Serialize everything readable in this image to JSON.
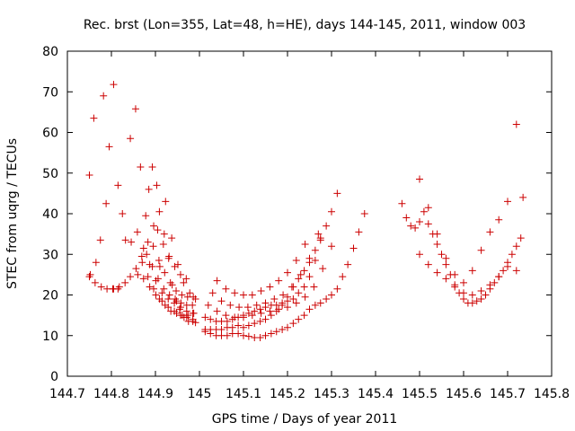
{
  "chart_data": {
    "type": "scatter",
    "title": "Rec. brst (Lon=355, Lat=48, h=HE), days 144-145, 2011, window 003",
    "xlabel": "GPS time / Days of year 2011",
    "ylabel": "STEC from uqrg / TECUs",
    "xlim": [
      144.7,
      145.8
    ],
    "ylim": [
      0,
      80
    ],
    "xticks": [
      "144.7",
      "144.8",
      "144.9",
      "145",
      "145.1",
      "145.2",
      "145.3",
      "145.4",
      "145.5",
      "145.6",
      "145.7",
      "145.8"
    ],
    "yticks": [
      "0",
      "10",
      "20",
      "30",
      "40",
      "50",
      "60",
      "70",
      "80"
    ],
    "grid": false,
    "marker": "plus",
    "color": "#cc0000",
    "series": [
      {
        "name": "",
        "x": [
          144.75,
          144.752,
          144.76,
          144.765,
          144.775,
          144.782,
          144.788,
          144.795,
          144.805,
          144.815,
          144.825,
          144.832,
          144.843,
          144.855,
          144.866,
          144.878,
          144.885,
          144.893,
          144.903,
          144.91,
          144.92,
          144.93,
          144.938,
          144.948,
          144.955,
          144.965,
          144.975,
          144.985,
          144.991,
          144.75,
          144.763,
          144.777,
          144.79,
          144.803,
          144.805,
          144.815,
          144.818,
          144.831,
          144.843,
          144.856,
          144.869,
          144.883,
          144.896,
          144.909,
          144.923,
          144.937,
          144.951,
          144.964,
          144.978,
          144.991,
          144.845,
          144.859,
          144.873,
          144.887,
          144.901,
          144.915,
          144.929,
          144.943,
          144.957,
          144.971,
          144.985,
          144.86,
          144.873,
          144.887,
          144.901,
          144.915,
          144.929,
          144.943,
          144.957,
          144.971,
          144.985,
          144.87,
          144.883,
          144.896,
          144.909,
          144.922,
          144.935,
          144.948,
          144.961,
          144.974,
          144.987,
          144.88,
          144.893,
          144.906,
          144.919,
          144.932,
          144.945,
          144.958,
          144.971,
          144.984,
          144.895,
          144.908,
          144.921,
          144.934,
          144.947,
          144.96,
          144.973,
          144.986,
          144.905,
          144.918,
          144.931,
          144.944,
          144.957,
          144.97,
          145.013,
          145.025,
          145.038,
          145.05,
          145.063,
          145.075,
          145.088,
          145.1,
          145.112,
          145.125,
          145.138,
          145.15,
          145.163,
          145.175,
          145.188,
          145.2,
          145.213,
          145.225,
          145.238,
          145.25,
          145.263,
          145.275,
          145.288,
          145.3,
          145.313,
          145.325,
          145.337,
          145.35,
          145.362,
          145.375,
          145.013,
          145.025,
          145.038,
          145.05,
          145.063,
          145.075,
          145.088,
          145.1,
          145.112,
          145.125,
          145.138,
          145.15,
          145.163,
          145.175,
          145.188,
          145.2,
          145.213,
          145.225,
          145.238,
          145.25,
          145.263,
          145.275,
          145.288,
          145.3,
          145.313,
          145.013,
          145.025,
          145.038,
          145.05,
          145.063,
          145.075,
          145.088,
          145.1,
          145.112,
          145.125,
          145.138,
          145.15,
          145.163,
          145.175,
          145.188,
          145.2,
          145.213,
          145.225,
          145.238,
          145.25,
          145.263,
          145.275,
          145.02,
          145.04,
          145.06,
          145.08,
          145.1,
          145.12,
          145.14,
          145.16,
          145.18,
          145.2,
          145.22,
          145.24,
          145.26,
          145.28,
          145.3,
          145.03,
          145.05,
          145.07,
          145.09,
          145.11,
          145.13,
          145.15,
          145.17,
          145.19,
          145.21,
          145.23,
          145.25,
          145.27,
          145.04,
          145.06,
          145.08,
          145.1,
          145.12,
          145.14,
          145.16,
          145.18,
          145.2,
          145.22,
          145.24,
          145.46,
          145.47,
          145.48,
          145.49,
          145.5,
          145.51,
          145.52,
          145.53,
          145.54,
          145.55,
          145.56,
          145.57,
          145.58,
          145.59,
          145.6,
          145.61,
          145.62,
          145.63,
          145.64,
          145.65,
          145.66,
          145.67,
          145.68,
          145.69,
          145.7,
          145.71,
          145.72,
          145.73,
          145.5,
          145.52,
          145.54,
          145.56,
          145.58,
          145.6,
          145.62,
          145.64,
          145.66,
          145.68,
          145.7,
          145.72,
          145.5,
          145.52,
          145.54,
          145.56,
          145.58,
          145.6,
          145.62,
          145.64,
          145.66,
          145.68,
          145.7,
          145.72,
          145.735
        ],
        "y": [
          49.5,
          25.0,
          63.5,
          28.0,
          33.5,
          69.0,
          42.5,
          56.5,
          71.8,
          47.0,
          40.0,
          33.5,
          58.5,
          65.8,
          51.5,
          39.5,
          46.0,
          51.5,
          47.0,
          27.0,
          35.0,
          29.0,
          22.5,
          18.5,
          16.5,
          14.5,
          13.5,
          13.5,
          13.2,
          24.5,
          23.0,
          22.0,
          21.5,
          21.5,
          21.5,
          21.5,
          22.0,
          23.0,
          24.5,
          26.5,
          29.5,
          33.0,
          37.0,
          40.5,
          43.0,
          34.0,
          27.5,
          23.0,
          20.5,
          19.0,
          33.0,
          35.5,
          31.5,
          27.5,
          23.5,
          20.5,
          19.0,
          18.0,
          17.0,
          16.0,
          15.5,
          25.0,
          24.0,
          22.0,
          20.0,
          18.5,
          17.0,
          16.0,
          15.0,
          14.5,
          14.0,
          28.0,
          24.5,
          21.5,
          19.0,
          17.5,
          16.0,
          15.5,
          15.0,
          15.0,
          15.5,
          30.0,
          27.0,
          24.0,
          21.5,
          20.0,
          19.0,
          18.0,
          17.5,
          17.5,
          32.0,
          28.5,
          25.5,
          23.0,
          21.0,
          20.0,
          19.5,
          19.5,
          36.0,
          32.5,
          29.5,
          27.0,
          25.0,
          24.0,
          11.0,
          10.5,
          10.0,
          10.0,
          10.0,
          10.5,
          10.5,
          10.0,
          9.8,
          9.5,
          9.5,
          10.0,
          10.5,
          11.0,
          11.5,
          12.0,
          13.0,
          14.0,
          15.0,
          16.5,
          17.5,
          18.0,
          19.0,
          20.0,
          21.5,
          24.5,
          27.5,
          31.5,
          35.5,
          40.0,
          11.5,
          11.5,
          11.5,
          11.5,
          12.0,
          12.0,
          12.5,
          12.0,
          12.5,
          13.0,
          13.5,
          14.0,
          15.0,
          16.0,
          17.5,
          19.5,
          22.0,
          24.0,
          26.0,
          28.0,
          31.0,
          34.0,
          37.0,
          40.5,
          45.0,
          14.5,
          14.0,
          13.5,
          13.5,
          13.5,
          14.0,
          14.5,
          15.0,
          15.5,
          16.0,
          16.5,
          17.0,
          17.5,
          17.5,
          18.0,
          18.5,
          19.0,
          20.5,
          22.0,
          24.5,
          28.5,
          33.5,
          17.5,
          16.0,
          15.0,
          14.5,
          14.5,
          15.0,
          15.5,
          16.0,
          16.5,
          17.0,
          18.0,
          19.5,
          22.0,
          26.5,
          32.0,
          20.5,
          18.5,
          17.5,
          17.0,
          17.0,
          17.5,
          18.0,
          19.0,
          20.0,
          22.0,
          25.0,
          29.0,
          35.0,
          23.5,
          21.5,
          20.5,
          20.0,
          20.0,
          21.0,
          22.0,
          23.5,
          25.5,
          28.5,
          32.5,
          42.5,
          39.0,
          37.0,
          36.5,
          38.0,
          40.5,
          37.5,
          35.0,
          32.5,
          30.0,
          27.5,
          25.0,
          22.5,
          20.5,
          19.0,
          18.0,
          18.0,
          18.5,
          19.0,
          20.0,
          21.5,
          23.0,
          24.5,
          26.0,
          28.0,
          30.0,
          32.0,
          34.0,
          48.5,
          41.5,
          35.0,
          29.0,
          25.0,
          23.0,
          26.0,
          31.0,
          35.5,
          38.5,
          43.0,
          62.0,
          30.0,
          27.5,
          25.5,
          24.0,
          22.0,
          20.5,
          20.0,
          21.0,
          22.5,
          24.5,
          27.0,
          26.0,
          44.0
        ]
      }
    ]
  }
}
